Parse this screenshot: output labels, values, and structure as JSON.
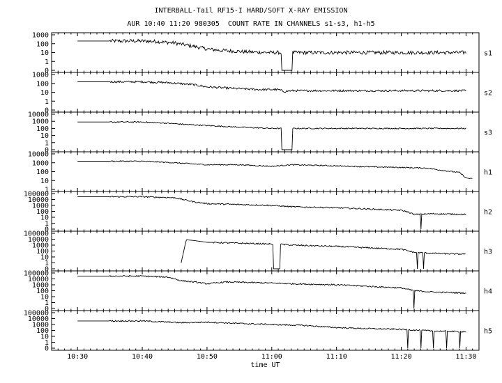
{
  "figure": {
    "title": "INTERBALL-Tail RF15-I HARD/SOFT X-RAY EMISSION",
    "subtitle": "AUR 10:40 11:20 980305  COUNT RATE IN CHANNELS s1-s3, h1-h5"
  },
  "chart_data": {
    "type": "line",
    "xlabel": "time UT",
    "x_unit": "minutes of UT hour",
    "xlim": [
      "10:26",
      "11:32"
    ],
    "x_ticks": [
      "10:30",
      "10:40",
      "10:50",
      "11:00",
      "11:10",
      "11:20",
      "11:30"
    ],
    "y_scale": "log",
    "grid": false,
    "panels": [
      {
        "name": "s1",
        "y_ticks": [
          "1000",
          "100",
          "10",
          "1",
          "0"
        ],
        "y_tick_values": [
          1000,
          100,
          10,
          1,
          0.1
        ],
        "series": {
          "x": [
            "10:30",
            "10:40",
            "10:42",
            "10:45",
            "10:48",
            "10:50",
            "10:52",
            "10:56",
            "11:00",
            "11:01",
            "11:03",
            "11:10",
            "11:20",
            "11:30"
          ],
          "y": [
            200,
            200,
            180,
            120,
            50,
            25,
            18,
            12,
            10,
            10,
            10,
            10,
            10,
            10
          ]
        },
        "gaps": [
          [
            "11:01.5",
            "11:03.2"
          ]
        ],
        "noise": 1.6
      },
      {
        "name": "s2",
        "y_ticks": [
          "1000",
          "100",
          "10",
          "1",
          "0"
        ],
        "y_tick_values": [
          1000,
          100,
          10,
          1,
          0.1
        ],
        "series": {
          "x": [
            "10:30",
            "10:40",
            "10:44",
            "10:48",
            "10:50",
            "10:53",
            "10:58",
            "11:01",
            "11:02",
            "11:03",
            "11:10",
            "11:20",
            "11:30"
          ],
          "y": [
            150,
            150,
            120,
            70,
            40,
            30,
            20,
            20,
            12,
            15,
            15,
            15,
            15
          ]
        },
        "gaps": [],
        "noise": 1.3
      },
      {
        "name": "s3",
        "y_ticks": [
          "10000",
          "1000",
          "100",
          "10",
          "1",
          "0"
        ],
        "y_tick_values": [
          10000,
          1000,
          100,
          10,
          1,
          0.1
        ],
        "series": {
          "x": [
            "10:30",
            "10:40",
            "10:43",
            "10:47",
            "10:50",
            "10:55",
            "11:00",
            "11:01",
            "11:03",
            "11:10",
            "11:20",
            "11:30"
          ],
          "y": [
            800,
            800,
            600,
            350,
            250,
            150,
            100,
            100,
            100,
            100,
            100,
            100
          ]
        },
        "gaps": [
          [
            "11:01.5",
            "11:03.2"
          ]
        ],
        "noise": 1.2
      },
      {
        "name": "h1",
        "y_ticks": [
          "10000",
          "1000",
          "100",
          "10",
          "1"
        ],
        "y_tick_values": [
          10000,
          1000,
          100,
          10,
          1
        ],
        "series": {
          "x": [
            "10:30",
            "10:40",
            "10:45",
            "10:50",
            "10:55",
            "11:00",
            "11:03",
            "11:10",
            "11:15",
            "11:20",
            "11:24",
            "11:26",
            "11:29",
            "11:30",
            "11:31"
          ],
          "y": [
            1500,
            1500,
            1000,
            600,
            600,
            400,
            600,
            450,
            350,
            300,
            250,
            150,
            80,
            20,
            15
          ]
        },
        "gaps": [],
        "noise": 1.15
      },
      {
        "name": "h2",
        "y_ticks": [
          "100000",
          "10000",
          "1000",
          "100",
          "10",
          "1",
          "0"
        ],
        "y_tick_values": [
          100000,
          10000,
          1000,
          100,
          10,
          1,
          0.1
        ],
        "series": {
          "x": [
            "10:30",
            "10:40",
            "10:45",
            "10:48",
            "10:50",
            "11:00",
            "11:03",
            "11:10",
            "11:20",
            "11:21",
            "11:22",
            "11:25",
            "11:30"
          ],
          "y": [
            30000,
            30000,
            20000,
            4000,
            2000,
            1000,
            600,
            400,
            150,
            80,
            30,
            40,
            30
          ]
        },
        "gaps": [],
        "noise": 1.3,
        "dropouts": [
          "11:23",
          "11:30.3"
        ]
      },
      {
        "name": "h3",
        "y_ticks": [
          "100000",
          "10000",
          "1000",
          "100",
          "10",
          "1",
          "0"
        ],
        "y_tick_values": [
          100000,
          10000,
          1000,
          100,
          10,
          1,
          0.1
        ],
        "series": {
          "x": [
            "10:46",
            "10:46.8",
            "10:48",
            "10:50",
            "11:00",
            "11:01",
            "11:03",
            "11:10",
            "11:20",
            "11:22",
            "11:25",
            "11:30"
          ],
          "y": [
            1,
            8000,
            6000,
            3000,
            1500,
            1500,
            1000,
            600,
            200,
            60,
            40,
            30
          ]
        },
        "gaps": [
          [
            "11:00.2",
            "11:01.3"
          ]
        ],
        "noise": 1.3,
        "dropouts": [
          "11:22.5",
          "11:23.5",
          "11:30.3"
        ]
      },
      {
        "name": "h4",
        "y_ticks": [
          "100000",
          "10000",
          "1000",
          "100",
          "10",
          "1",
          "0"
        ],
        "y_tick_values": [
          100000,
          10000,
          1000,
          100,
          10,
          1,
          0.1
        ],
        "series": {
          "x": [
            "10:30",
            "10:40",
            "10:44",
            "10:46",
            "10:48",
            "10:50",
            "10:53",
            "11:00",
            "11:03",
            "11:10",
            "11:20",
            "11:22",
            "11:25",
            "11:30"
          ],
          "y": [
            30000,
            30000,
            20000,
            5000,
            3000,
            1500,
            3000,
            2000,
            1500,
            1000,
            300,
            100,
            60,
            40
          ]
        },
        "gaps": [],
        "noise": 1.3,
        "dropouts": [
          "11:22",
          "11:30.3"
        ]
      },
      {
        "name": "h5",
        "y_ticks": [
          "100000",
          "10000",
          "1000",
          "100",
          "10",
          "1",
          "0"
        ],
        "y_tick_values": [
          100000,
          10000,
          1000,
          100,
          10,
          1,
          0.1
        ],
        "series": {
          "x": [
            "10:30",
            "10:40",
            "10:44",
            "10:46",
            "10:50",
            "10:55",
            "11:00",
            "11:05",
            "11:10",
            "11:15",
            "11:20",
            "11:25",
            "11:30"
          ],
          "y": [
            4000,
            4000,
            2500,
            2000,
            2500,
            1500,
            1000,
            700,
            300,
            200,
            150,
            80,
            60
          ]
        },
        "gaps": [],
        "noise": 1.3,
        "dropouts": [
          "11:21",
          "11:23",
          "11:25",
          "11:27",
          "11:29",
          "11:30.5"
        ]
      }
    ]
  }
}
